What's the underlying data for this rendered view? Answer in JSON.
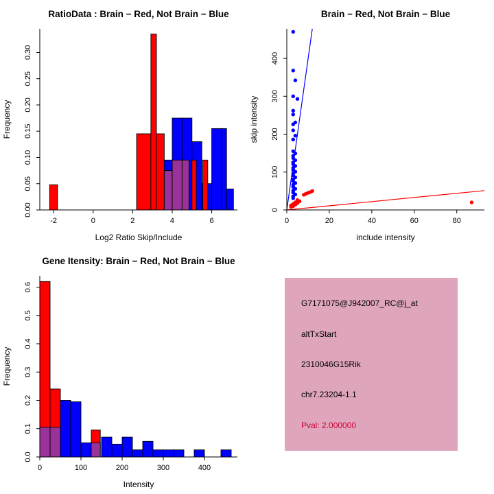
{
  "colors": {
    "red": "#FF0000",
    "blue": "#0000FF",
    "purple": "#993399",
    "axis": "#000000",
    "info_bg": "#DFA5BC",
    "pval_red": "#CC0033"
  },
  "chart_data": [
    {
      "type": "bar",
      "variant": "overlaid-histogram",
      "title": "RatioData : Brain − Red, Not Brain − Blue",
      "xlabel": "Log2 Ratio Skip/Include",
      "ylabel": "Frequency",
      "xlim": [
        -2.7,
        7.3
      ],
      "ylim": [
        0,
        0.345
      ],
      "xticks": [
        -2,
        0,
        2,
        4,
        6
      ],
      "xtick_labels": [
        "-2",
        "0",
        "2",
        "4",
        "6"
      ],
      "yticks": [
        0,
        0.05,
        0.1,
        0.15,
        0.2,
        0.25,
        0.3
      ],
      "ytick_labels": [
        "0.00",
        "0.05",
        "0.10",
        "0.15",
        "0.20",
        "0.25",
        "0.30"
      ],
      "legend": [
        {
          "label": "Brain",
          "color": "red"
        },
        {
          "label": "Not Brain",
          "color": "blue"
        }
      ],
      "bars": [
        {
          "x": -2.2,
          "w": 0.4,
          "h": 0.048,
          "color": "red"
        },
        {
          "x": 2.2,
          "w": 0.72,
          "h": 0.145,
          "color": "red"
        },
        {
          "x": 2.92,
          "w": 0.28,
          "h": 0.335,
          "color": "red"
        },
        {
          "x": 3.2,
          "w": 0.4,
          "h": 0.145,
          "color": "red"
        },
        {
          "x": 3.6,
          "w": 0.4,
          "h": 0.095,
          "color": "blue"
        },
        {
          "x": 3.6,
          "w": 0.4,
          "h": 0.075,
          "color": "purple"
        },
        {
          "x": 4.0,
          "w": 0.5,
          "h": 0.175,
          "color": "blue"
        },
        {
          "x": 4.0,
          "w": 0.5,
          "h": 0.095,
          "color": "purple"
        },
        {
          "x": 4.5,
          "w": 0.5,
          "h": 0.175,
          "color": "blue"
        },
        {
          "x": 4.5,
          "w": 0.35,
          "h": 0.095,
          "color": "purple"
        },
        {
          "x": 5.0,
          "w": 0.5,
          "h": 0.13,
          "color": "blue"
        },
        {
          "x": 5.0,
          "w": 0.22,
          "h": 0.095,
          "color": "red"
        },
        {
          "x": 5.5,
          "w": 0.5,
          "h": 0.05,
          "color": "blue"
        },
        {
          "x": 5.55,
          "w": 0.25,
          "h": 0.095,
          "color": "red"
        },
        {
          "x": 6.0,
          "w": 0.5,
          "h": 0.155,
          "color": "blue"
        },
        {
          "x": 6.5,
          "w": 0.25,
          "h": 0.155,
          "color": "blue"
        },
        {
          "x": 6.75,
          "w": 0.35,
          "h": 0.04,
          "color": "blue"
        }
      ]
    },
    {
      "type": "scatter",
      "title": "Brain − Red, Not Brain − Blue",
      "xlabel": "include intensity",
      "ylabel": "skip intensity",
      "xlim": [
        0,
        93
      ],
      "ylim": [
        0,
        478
      ],
      "xticks": [
        0,
        20,
        40,
        60,
        80
      ],
      "xtick_labels": [
        "0",
        "20",
        "40",
        "60",
        "80"
      ],
      "yticks": [
        0,
        100,
        200,
        300,
        400
      ],
      "ytick_labels": [
        "0",
        "100",
        "200",
        "300",
        "400"
      ],
      "series": [
        {
          "name": "Not Brain",
          "color": "#0000FF",
          "points": [
            [
              3,
              470
            ],
            [
              3,
              368
            ],
            [
              4,
              342
            ],
            [
              3,
              300
            ],
            [
              5,
              293
            ],
            [
              3,
              262
            ],
            [
              3,
              252
            ],
            [
              4,
              231
            ],
            [
              3,
              226
            ],
            [
              3,
              210
            ],
            [
              4,
              196
            ],
            [
              3,
              186
            ],
            [
              3,
              155
            ],
            [
              4,
              149
            ],
            [
              3,
              143
            ],
            [
              3,
              137
            ],
            [
              4,
              131
            ],
            [
              3,
              126
            ],
            [
              3,
              121
            ],
            [
              4,
              116
            ],
            [
              3,
              111
            ],
            [
              3,
              106
            ],
            [
              4,
              101
            ],
            [
              3,
              96
            ],
            [
              3,
              91
            ],
            [
              4,
              86
            ],
            [
              3,
              81
            ],
            [
              3,
              76
            ],
            [
              4,
              71
            ],
            [
              3,
              66
            ],
            [
              3,
              61
            ],
            [
              4,
              56
            ],
            [
              3,
              51
            ],
            [
              3,
              46
            ],
            [
              4,
              41
            ],
            [
              3,
              36
            ],
            [
              3,
              31
            ]
          ]
        },
        {
          "name": "Brain",
          "color": "#FF0000",
          "points": [
            [
              2,
              8
            ],
            [
              3,
              10
            ],
            [
              2,
              12
            ],
            [
              4,
              14
            ],
            [
              3,
              16
            ],
            [
              5,
              18
            ],
            [
              4,
              20
            ],
            [
              6,
              23
            ],
            [
              5,
              26
            ],
            [
              8,
              40
            ],
            [
              9,
              43
            ],
            [
              10,
              45
            ],
            [
              11,
              47
            ],
            [
              12,
              50
            ],
            [
              87,
              20
            ]
          ]
        }
      ],
      "lines": [
        {
          "color": "#0000FF",
          "x1": 0,
          "y1": 0,
          "x2": 12,
          "y2": 478
        },
        {
          "color": "#FF0000",
          "x1": 0,
          "y1": 0,
          "x2": 93,
          "y2": 51
        }
      ]
    },
    {
      "type": "bar",
      "variant": "overlaid-histogram",
      "title": "Gene Itensity: Brain − Red, Not Brain − Blue",
      "xlabel": "Intensity",
      "ylabel": "Frequency",
      "xlim": [
        0,
        480
      ],
      "ylim": [
        0,
        0.64
      ],
      "xticks": [
        0,
        100,
        200,
        300,
        400
      ],
      "xtick_labels": [
        "0",
        "100",
        "200",
        "300",
        "400"
      ],
      "yticks": [
        0,
        0.1,
        0.2,
        0.3,
        0.4,
        0.5,
        0.6
      ],
      "ytick_labels": [
        "0.0",
        "0.1",
        "0.2",
        "0.3",
        "0.4",
        "0.5",
        "0.6"
      ],
      "legend": [
        {
          "label": "Brain",
          "color": "red"
        },
        {
          "label": "Not Brain",
          "color": "blue"
        }
      ],
      "bars": [
        {
          "x": 0,
          "w": 25,
          "h": 0.62,
          "color": "red"
        },
        {
          "x": 0,
          "w": 25,
          "h": 0.105,
          "color": "purple"
        },
        {
          "x": 25,
          "w": 25,
          "h": 0.24,
          "color": "red"
        },
        {
          "x": 25,
          "w": 25,
          "h": 0.105,
          "color": "purple"
        },
        {
          "x": 50,
          "w": 25,
          "h": 0.2,
          "color": "blue"
        },
        {
          "x": 75,
          "w": 25,
          "h": 0.195,
          "color": "blue"
        },
        {
          "x": 100,
          "w": 25,
          "h": 0.05,
          "color": "blue"
        },
        {
          "x": 125,
          "w": 22,
          "h": 0.095,
          "color": "red"
        },
        {
          "x": 125,
          "w": 22,
          "h": 0.05,
          "color": "purple"
        },
        {
          "x": 150,
          "w": 25,
          "h": 0.07,
          "color": "blue"
        },
        {
          "x": 175,
          "w": 25,
          "h": 0.045,
          "color": "blue"
        },
        {
          "x": 200,
          "w": 25,
          "h": 0.07,
          "color": "blue"
        },
        {
          "x": 225,
          "w": 25,
          "h": 0.025,
          "color": "blue"
        },
        {
          "x": 250,
          "w": 25,
          "h": 0.055,
          "color": "blue"
        },
        {
          "x": 275,
          "w": 25,
          "h": 0.025,
          "color": "blue"
        },
        {
          "x": 300,
          "w": 25,
          "h": 0.025,
          "color": "blue"
        },
        {
          "x": 325,
          "w": 25,
          "h": 0.025,
          "color": "blue"
        },
        {
          "x": 375,
          "w": 25,
          "h": 0.025,
          "color": "blue"
        },
        {
          "x": 440,
          "w": 25,
          "h": 0.025,
          "color": "blue"
        }
      ]
    }
  ],
  "info": {
    "probe": "G7171075@J942007_RC@j_at",
    "event_type": "altTxStart",
    "gene": "2310046G15Rik",
    "locus": "chr7.23204-1.1",
    "pval": "Pval: 2.000000"
  }
}
